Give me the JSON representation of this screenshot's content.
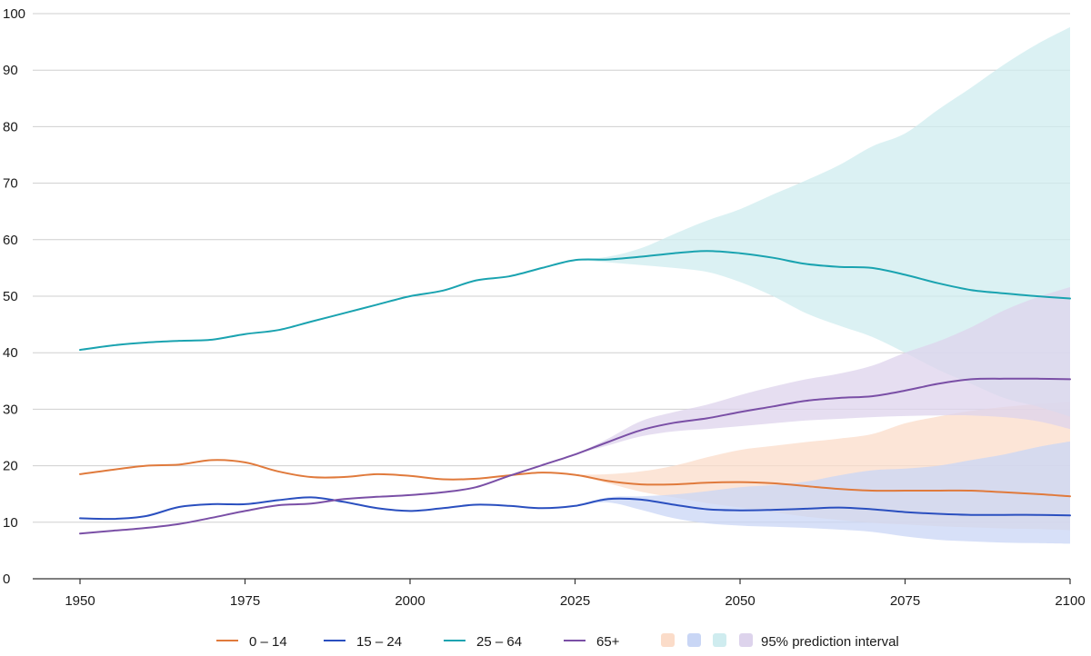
{
  "chart_data": {
    "type": "line",
    "title": "",
    "xlabel": "",
    "ylabel": "",
    "xlim": [
      1950,
      2100
    ],
    "ylim": [
      0,
      100
    ],
    "grid": true,
    "legend_placement": "bottom",
    "x_ticks": [
      "1950",
      "1975",
      "2000",
      "2025",
      "2050",
      "2075",
      "2100"
    ],
    "y_ticks": [
      "0",
      "10",
      "20",
      "30",
      "40",
      "50",
      "60",
      "70",
      "80",
      "90",
      "100"
    ],
    "series": [
      {
        "name": "0 – 14",
        "color": "#e07a3c",
        "band_color": "#fbdcc9",
        "points": [
          [
            1950,
            18.5
          ],
          [
            1955,
            19.3
          ],
          [
            1960,
            20.0
          ],
          [
            1965,
            20.2
          ],
          [
            1970,
            21.0
          ],
          [
            1975,
            20.6
          ],
          [
            1980,
            19.0
          ],
          [
            1985,
            18.0
          ],
          [
            1990,
            18.0
          ],
          [
            1995,
            18.5
          ],
          [
            2000,
            18.2
          ],
          [
            2005,
            17.6
          ],
          [
            2010,
            17.7
          ],
          [
            2015,
            18.3
          ],
          [
            2020,
            18.8
          ],
          [
            2025,
            18.4
          ],
          [
            2030,
            17.3
          ],
          [
            2035,
            16.7
          ],
          [
            2040,
            16.7
          ],
          [
            2045,
            17.0
          ],
          [
            2050,
            17.1
          ],
          [
            2055,
            16.9
          ],
          [
            2060,
            16.4
          ],
          [
            2065,
            15.9
          ],
          [
            2070,
            15.6
          ],
          [
            2075,
            15.6
          ],
          [
            2080,
            15.6
          ],
          [
            2085,
            15.6
          ],
          [
            2090,
            15.3
          ],
          [
            2095,
            15.0
          ],
          [
            2100,
            14.6
          ]
        ],
        "band": {
          "x": [
            2025,
            2030,
            2035,
            2040,
            2045,
            2050,
            2055,
            2060,
            2065,
            2070,
            2075,
            2080,
            2085,
            2090,
            2095,
            2100
          ],
          "lower": [
            18.4,
            16.9,
            15.4,
            14.4,
            13.4,
            12.6,
            11.8,
            11.0,
            10.4,
            9.9,
            9.6,
            9.3,
            9.1,
            8.9,
            8.8,
            8.6
          ],
          "upper": [
            18.4,
            18.5,
            19.0,
            20.0,
            21.5,
            22.8,
            23.5,
            24.2,
            24.8,
            25.6,
            27.5,
            28.7,
            29.7,
            30.4,
            30.9,
            31.3
          ]
        }
      },
      {
        "name": "15 – 24",
        "color": "#2a4fbf",
        "band_color": "#c9d6f5",
        "points": [
          [
            1950,
            10.7
          ],
          [
            1955,
            10.6
          ],
          [
            1960,
            11.1
          ],
          [
            1965,
            12.7
          ],
          [
            1970,
            13.2
          ],
          [
            1975,
            13.2
          ],
          [
            1980,
            13.9
          ],
          [
            1985,
            14.4
          ],
          [
            1990,
            13.6
          ],
          [
            1995,
            12.5
          ],
          [
            2000,
            12.0
          ],
          [
            2005,
            12.5
          ],
          [
            2010,
            13.1
          ],
          [
            2015,
            12.9
          ],
          [
            2020,
            12.5
          ],
          [
            2025,
            12.9
          ],
          [
            2030,
            14.1
          ],
          [
            2035,
            14.0
          ],
          [
            2040,
            13.1
          ],
          [
            2045,
            12.3
          ],
          [
            2050,
            12.1
          ],
          [
            2055,
            12.2
          ],
          [
            2060,
            12.4
          ],
          [
            2065,
            12.6
          ],
          [
            2070,
            12.3
          ],
          [
            2075,
            11.8
          ],
          [
            2080,
            11.5
          ],
          [
            2085,
            11.3
          ],
          [
            2090,
            11.3
          ],
          [
            2095,
            11.3
          ],
          [
            2100,
            11.2
          ]
        ],
        "band": {
          "x": [
            2025,
            2030,
            2035,
            2040,
            2045,
            2050,
            2055,
            2060,
            2065,
            2070,
            2075,
            2080,
            2085,
            2090,
            2095,
            2100
          ],
          "lower": [
            12.9,
            13.5,
            12.2,
            10.7,
            9.8,
            9.4,
            9.2,
            9.0,
            8.7,
            8.3,
            7.5,
            6.9,
            6.6,
            6.4,
            6.3,
            6.2
          ],
          "upper": [
            12.9,
            14.4,
            14.6,
            14.9,
            15.5,
            16.2,
            16.6,
            17.2,
            18.3,
            19.2,
            19.5,
            20.0,
            21.0,
            22.0,
            23.3,
            24.3
          ]
        }
      },
      {
        "name": "25 – 64",
        "color": "#1aa3b0",
        "band_color": "#cfecef",
        "points": [
          [
            1950,
            40.5
          ],
          [
            1955,
            41.3
          ],
          [
            1960,
            41.8
          ],
          [
            1965,
            42.1
          ],
          [
            1970,
            42.3
          ],
          [
            1975,
            43.3
          ],
          [
            1980,
            44.0
          ],
          [
            1985,
            45.5
          ],
          [
            1990,
            47.0
          ],
          [
            1995,
            48.5
          ],
          [
            2000,
            50.0
          ],
          [
            2005,
            51.0
          ],
          [
            2010,
            52.8
          ],
          [
            2015,
            53.5
          ],
          [
            2020,
            55.0
          ],
          [
            2025,
            56.4
          ],
          [
            2030,
            56.5
          ],
          [
            2035,
            57.0
          ],
          [
            2040,
            57.6
          ],
          [
            2045,
            58.0
          ],
          [
            2050,
            57.6
          ],
          [
            2055,
            56.8
          ],
          [
            2060,
            55.7
          ],
          [
            2065,
            55.2
          ],
          [
            2070,
            55.0
          ],
          [
            2075,
            53.8
          ],
          [
            2080,
            52.3
          ],
          [
            2085,
            51.1
          ],
          [
            2090,
            50.5
          ],
          [
            2095,
            50.0
          ],
          [
            2100,
            49.6
          ]
        ],
        "band": {
          "x": [
            2025,
            2030,
            2035,
            2040,
            2045,
            2050,
            2055,
            2060,
            2065,
            2070,
            2075,
            2080,
            2085,
            2090,
            2095,
            2100
          ],
          "lower": [
            56.4,
            56.0,
            55.5,
            55.0,
            54.3,
            52.5,
            50.0,
            47.0,
            44.8,
            42.8,
            40.0,
            37.0,
            34.5,
            32.0,
            30.5,
            28.7
          ],
          "upper": [
            56.4,
            57.0,
            58.5,
            61.0,
            63.4,
            65.4,
            68.0,
            70.5,
            73.2,
            76.5,
            78.8,
            83.0,
            86.9,
            91.0,
            94.6,
            97.6
          ]
        }
      },
      {
        "name": "65+",
        "color": "#7a4fa6",
        "band_color": "#ddd3ec",
        "points": [
          [
            1950,
            8.0
          ],
          [
            1955,
            8.5
          ],
          [
            1960,
            9.0
          ],
          [
            1965,
            9.7
          ],
          [
            1970,
            10.8
          ],
          [
            1975,
            12.0
          ],
          [
            1980,
            13.0
          ],
          [
            1985,
            13.3
          ],
          [
            1990,
            14.1
          ],
          [
            1995,
            14.5
          ],
          [
            2000,
            14.8
          ],
          [
            2005,
            15.3
          ],
          [
            2010,
            16.2
          ],
          [
            2015,
            18.2
          ],
          [
            2020,
            20.1
          ],
          [
            2025,
            22.0
          ],
          [
            2030,
            24.2
          ],
          [
            2035,
            26.3
          ],
          [
            2040,
            27.6
          ],
          [
            2045,
            28.4
          ],
          [
            2050,
            29.5
          ],
          [
            2055,
            30.5
          ],
          [
            2060,
            31.5
          ],
          [
            2065,
            32.0
          ],
          [
            2070,
            32.3
          ],
          [
            2075,
            33.3
          ],
          [
            2080,
            34.5
          ],
          [
            2085,
            35.3
          ],
          [
            2090,
            35.4
          ],
          [
            2095,
            35.4
          ],
          [
            2100,
            35.3
          ]
        ],
        "band": {
          "x": [
            2025,
            2030,
            2035,
            2040,
            2045,
            2050,
            2055,
            2060,
            2065,
            2070,
            2075,
            2080,
            2085,
            2090,
            2095,
            2100
          ],
          "lower": [
            22.0,
            23.6,
            25.2,
            26.1,
            26.5,
            27.0,
            27.5,
            28.0,
            28.3,
            28.6,
            28.8,
            28.9,
            28.9,
            28.6,
            27.9,
            26.5
          ],
          "upper": [
            22.0,
            24.8,
            27.9,
            29.5,
            30.8,
            32.5,
            34.0,
            35.3,
            36.3,
            37.7,
            40.0,
            42.0,
            44.5,
            47.5,
            49.8,
            51.6
          ]
        }
      }
    ],
    "interval_legend_label": "95% prediction interval"
  }
}
